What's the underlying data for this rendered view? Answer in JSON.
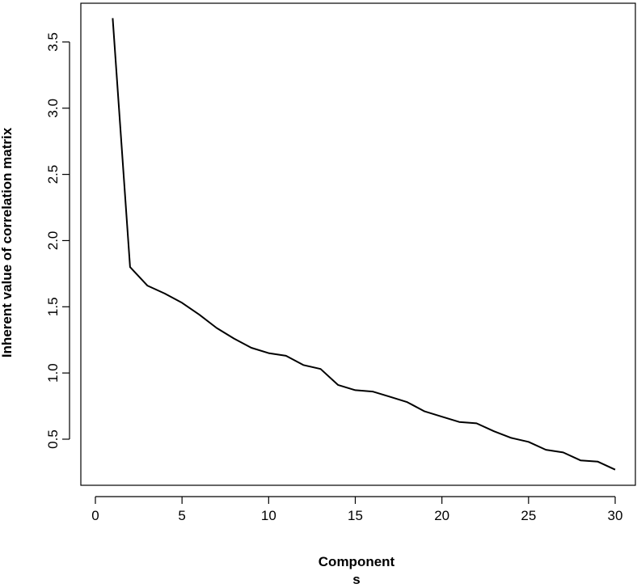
{
  "chart_data": {
    "type": "line",
    "title": "",
    "xlabel_lines": [
      "Component",
      "s"
    ],
    "ylabel": "Inherent value of correlation matrix",
    "xlim": [
      0,
      30
    ],
    "ylim": [
      0.2,
      3.7
    ],
    "xticks": [
      0,
      5,
      10,
      15,
      20,
      25,
      30
    ],
    "yticks": [
      0.5,
      1.0,
      1.5,
      2.0,
      2.5,
      3.0,
      3.5
    ],
    "ytick_labels": [
      "0.5",
      "1.0",
      "1.5",
      "2.0",
      "2.5",
      "3.0",
      "3.5"
    ],
    "grid": false,
    "legend": "none",
    "series": [
      {
        "x": [
          1,
          2,
          3,
          4,
          5,
          6,
          7,
          8,
          9,
          10,
          11,
          12,
          13,
          14,
          15,
          16,
          17,
          18,
          19,
          20,
          21,
          22,
          23,
          24,
          25,
          26,
          27,
          28,
          29,
          30
        ],
        "values": [
          3.68,
          1.8,
          1.66,
          1.6,
          1.53,
          1.44,
          1.34,
          1.26,
          1.19,
          1.15,
          1.13,
          1.06,
          1.03,
          0.91,
          0.87,
          0.86,
          0.82,
          0.78,
          0.71,
          0.67,
          0.63,
          0.62,
          0.56,
          0.51,
          0.48,
          0.42,
          0.4,
          0.34,
          0.33,
          0.27
        ],
        "color": "#000000"
      }
    ]
  }
}
